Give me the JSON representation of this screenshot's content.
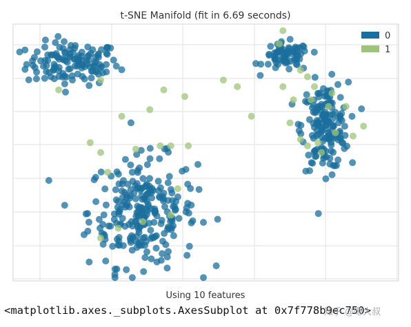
{
  "chart_data": {
    "type": "scatter",
    "title": "t-SNE Manifold (fit in 6.69 seconds)",
    "xlabel": "Using 10 features",
    "ylabel": "",
    "grid": true,
    "legend_placement": "top-right",
    "colors": {
      "0": "#1b6f9c",
      "1": "#9ec47a"
    },
    "series": [
      {
        "name": "0",
        "clusters": [
          {
            "center": [
              -38,
              28
            ],
            "spread": [
              12,
              6
            ],
            "n": 130
          },
          {
            "center": [
              -18,
              -17
            ],
            "spread": [
              14,
              15
            ],
            "n": 260
          },
          {
            "center": [
              23,
              30
            ],
            "spread": [
              6,
              4
            ],
            "n": 70
          },
          {
            "center": [
              34,
              9
            ],
            "spread": [
              6,
              12
            ],
            "n": 170
          }
        ]
      },
      {
        "name": "1",
        "points": [
          [
            -30,
            23
          ],
          [
            -42,
            20
          ],
          [
            -24,
            12
          ],
          [
            -33,
            4
          ],
          [
            -28,
            -5
          ],
          [
            -30,
            1
          ],
          [
            -20,
            2
          ],
          [
            -13,
            3
          ],
          [
            -8,
            -10
          ],
          [
            -10,
            3
          ],
          [
            -5,
            3
          ],
          [
            -18,
            -20
          ],
          [
            -30,
            -25
          ],
          [
            -25,
            -22
          ],
          [
            -10,
            -18
          ],
          [
            -12,
            20
          ],
          [
            -6,
            18
          ],
          [
            -16,
            14
          ],
          [
            5,
            23
          ],
          [
            9,
            21
          ],
          [
            13,
            12
          ],
          [
            22,
            38
          ],
          [
            21,
            34
          ],
          [
            27,
            26
          ],
          [
            29,
            24
          ],
          [
            31,
            21
          ],
          [
            25,
            17
          ],
          [
            30,
            17
          ],
          [
            36,
            19
          ],
          [
            24,
            10
          ],
          [
            37,
            7
          ],
          [
            29,
            3
          ],
          [
            32,
            4
          ],
          [
            27,
            5
          ],
          [
            42,
            6
          ],
          [
            33,
            1
          ],
          [
            22,
            21
          ],
          [
            45,
            9
          ],
          [
            35,
            15
          ],
          [
            40,
            15
          ]
        ]
      }
    ],
    "xlim": [
      -55,
      55
    ],
    "ylim": [
      -38,
      40
    ]
  },
  "footer": {
    "repr_text": "<matplotlib.axes._subplots.AxesSubplot at 0x7f778b9ec750>",
    "watermark_text": "知乎 @嗯大叔"
  }
}
